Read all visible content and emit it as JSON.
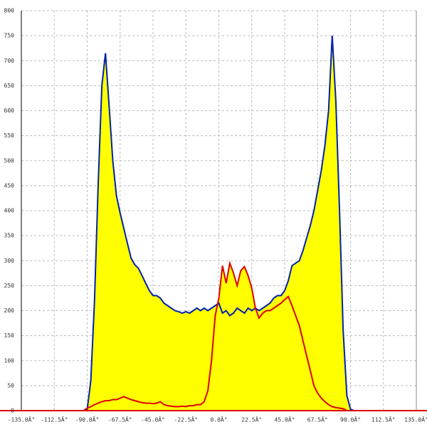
{
  "chart_data": {
    "type": "area",
    "x": [
      -95,
      -92.5,
      -90,
      -87.5,
      -85,
      -82.5,
      -80,
      -77.5,
      -75,
      -72.5,
      -70,
      -67.5,
      -65,
      -62.5,
      -60,
      -57.5,
      -55,
      -52.5,
      -50,
      -47.5,
      -45,
      -42.5,
      -40,
      -37.5,
      -35,
      -32.5,
      -30,
      -27.5,
      -25,
      -22.5,
      -20,
      -17.5,
      -15,
      -12.5,
      -10,
      -7.5,
      -5,
      -2.5,
      0,
      2.5,
      5,
      7.5,
      10,
      12.5,
      15,
      17.5,
      20,
      22.5,
      25,
      27.5,
      30,
      32.5,
      35,
      37.5,
      40,
      42.5,
      45,
      47.5,
      50,
      52.5,
      55,
      57.5,
      60,
      62.5,
      65,
      67.5,
      70,
      72.5,
      75,
      77.5,
      80,
      82.5,
      85,
      87.5,
      90,
      92.5,
      95
    ],
    "series": [
      {
        "color": "#0022aa",
        "fill": "#ffff00",
        "values": [
          0,
          0,
          2,
          60,
          220,
          450,
          650,
          715,
          610,
          500,
          430,
          395,
          365,
          335,
          305,
          292,
          285,
          270,
          255,
          240,
          230,
          230,
          225,
          215,
          210,
          205,
          200,
          198,
          195,
          198,
          195,
          200,
          205,
          200,
          205,
          200,
          205,
          210,
          215,
          195,
          200,
          190,
          195,
          205,
          200,
          195,
          205,
          200,
          205,
          200,
          205,
          210,
          215,
          225,
          230,
          230,
          240,
          260,
          290,
          295,
          300,
          320,
          345,
          370,
          400,
          440,
          480,
          530,
          600,
          750,
          620,
          400,
          160,
          30,
          3,
          0,
          0
        ]
      },
      {
        "color": "#dd0000",
        "fill": "#ffff00",
        "values": [
          0,
          0,
          5,
          8,
          12,
          15,
          18,
          20,
          20,
          22,
          22,
          25,
          28,
          25,
          22,
          20,
          18,
          16,
          15,
          15,
          14,
          15,
          18,
          12,
          10,
          9,
          8,
          8,
          9,
          8,
          10,
          10,
          12,
          12,
          18,
          40,
          100,
          190,
          225,
          290,
          255,
          295,
          275,
          250,
          280,
          288,
          270,
          245,
          205,
          185,
          195,
          200,
          200,
          205,
          210,
          215,
          222,
          228,
          210,
          190,
          170,
          140,
          110,
          80,
          50,
          35,
          25,
          18,
          12,
          8,
          6,
          5,
          4,
          0,
          0,
          0,
          0
        ]
      }
    ],
    "xlim": [
      -135,
      135
    ],
    "xticks": [
      {
        "value": -135,
        "label": "-135.0Â°"
      },
      {
        "value": -112.5,
        "label": "-112.5Â°"
      },
      {
        "value": -90,
        "label": "-90.0Â°"
      },
      {
        "value": -67.5,
        "label": "-67.5Â°"
      },
      {
        "value": -45,
        "label": "-45.0Â°"
      },
      {
        "value": -22.5,
        "label": "-22.5Â°"
      },
      {
        "value": 0,
        "label": "0.0Â°"
      },
      {
        "value": 22.5,
        "label": "22.5Â°"
      },
      {
        "value": 45,
        "label": "45.0Â°"
      },
      {
        "value": 67.5,
        "label": "67.5Â°"
      },
      {
        "value": 90,
        "label": "90.0Â°"
      },
      {
        "value": 112.5,
        "label": "112.5Â°"
      },
      {
        "value": 135,
        "label": "135.0Â°"
      }
    ],
    "ylim": [
      0,
      800
    ],
    "yticks": [
      0,
      50,
      100,
      150,
      200,
      250,
      300,
      350,
      400,
      450,
      500,
      550,
      600,
      650,
      700,
      750,
      800
    ],
    "grid": true
  }
}
